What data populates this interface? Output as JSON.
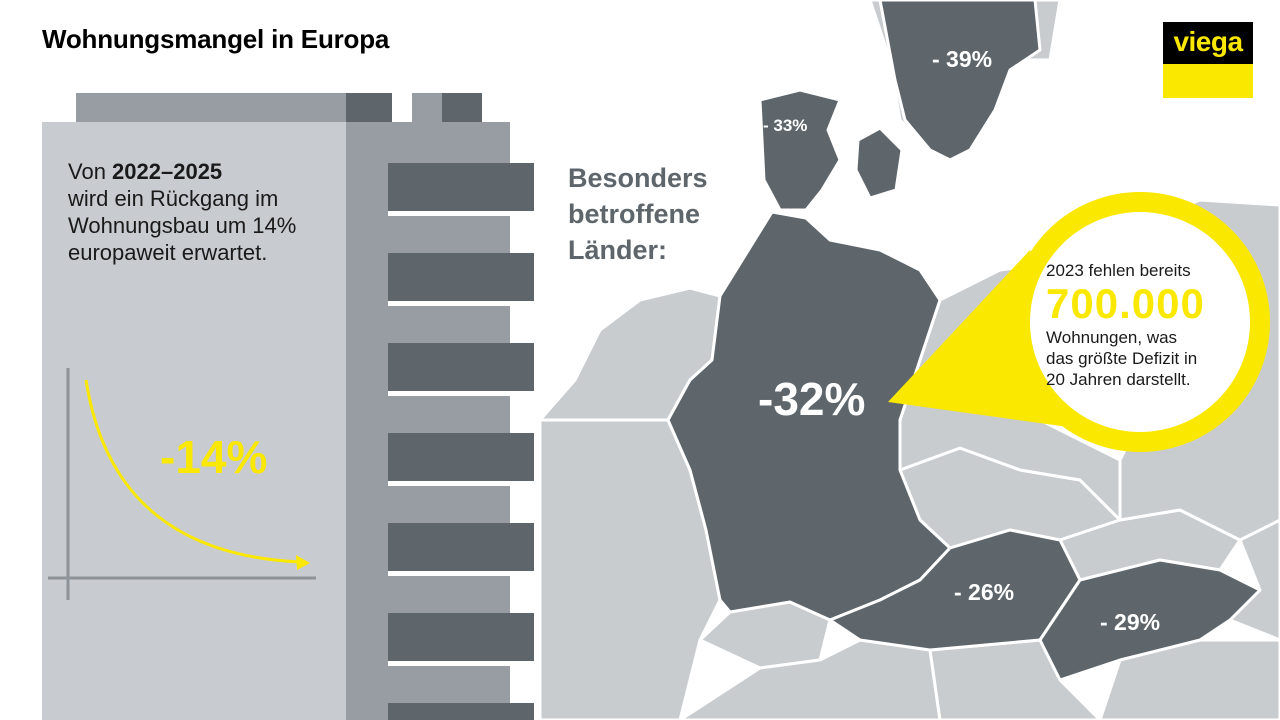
{
  "title": "Wohnungsmangel in Europa",
  "intro": {
    "prefix": "Von ",
    "highlight": "2022–2025",
    "line2": "wird ein Rückgang im",
    "line3": "Wohnungsbau um 14%",
    "line4": "europaweit erwartet."
  },
  "decline_chart": {
    "value_label": "-14%"
  },
  "heading": {
    "line1": "Besonders",
    "line2": "betroffene",
    "line3": "Länder:"
  },
  "countries": {
    "sweden": "- 39%",
    "denmark": "- 33%",
    "germany": "-32%",
    "austria": "- 26%",
    "hungary": "- 29%"
  },
  "callout": {
    "pre": "2023 fehlen bereits",
    "number": "700.000",
    "line1": "Wohnungen, was",
    "line2": "das größte Defizit in",
    "line3": "20 Jahren darstellt."
  },
  "logo": {
    "text": "viega"
  },
  "colors": {
    "accent": "#fbe800",
    "dark_country": "#5e666c",
    "light_country": "#c9cccf",
    "building_light": "#c8cbcf",
    "building_mid": "#979da2",
    "building_dark": "#5e666c"
  }
}
